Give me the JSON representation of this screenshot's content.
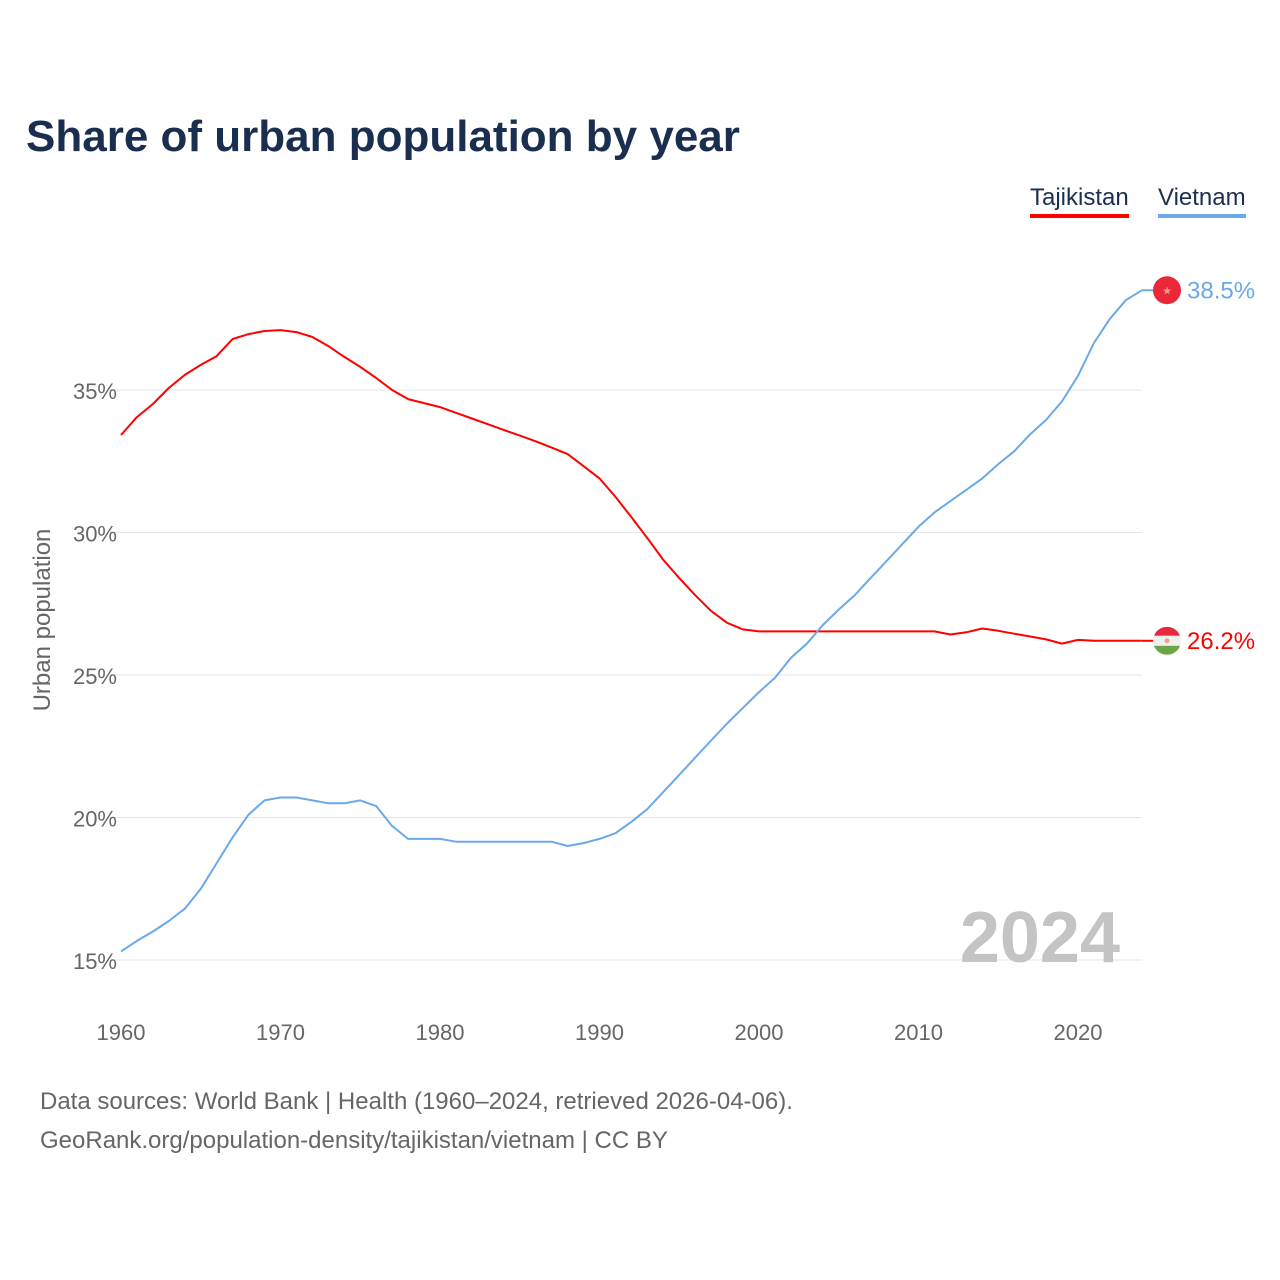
{
  "title": "Share of urban population by year",
  "chart_data": {
    "type": "line",
    "title": "Share of urban population by year",
    "xlabel": "",
    "ylabel": "Urban population",
    "xlim": [
      1960,
      2024
    ],
    "ylim": [
      15,
      38.5
    ],
    "x_ticks": [
      1960,
      1970,
      1980,
      1990,
      2000,
      2010,
      2020
    ],
    "x_tick_labels": [
      "1960",
      "1970",
      "1980",
      "1990",
      "2000",
      "2010",
      "2020"
    ],
    "y_ticks": [
      15,
      20,
      25,
      30,
      35
    ],
    "y_tick_labels": [
      "15%",
      "20%",
      "25%",
      "30%",
      "35%"
    ],
    "grid": true,
    "legend_position": "top-right",
    "annotation": "2024",
    "start_year": 1960,
    "series": [
      {
        "name": "Tajikistan",
        "color": "#ff0000",
        "end_label": "26.2%",
        "values": [
          33.42,
          34.05,
          34.51,
          35.07,
          35.53,
          35.88,
          36.19,
          36.79,
          36.96,
          37.07,
          37.1,
          37.03,
          36.86,
          36.54,
          36.16,
          35.81,
          35.42,
          35.0,
          34.68,
          34.54,
          34.4,
          34.2,
          34.0,
          33.8,
          33.6,
          33.4,
          33.2,
          32.98,
          32.75,
          32.33,
          31.9,
          31.25,
          30.54,
          29.8,
          29.04,
          28.4,
          27.8,
          27.25,
          26.83,
          26.6,
          26.53,
          26.53,
          26.53,
          26.53,
          26.53,
          26.53,
          26.53,
          26.53,
          26.53,
          26.53,
          26.53,
          26.53,
          26.42,
          26.5,
          26.63,
          26.55,
          26.45,
          26.35,
          26.25,
          26.1,
          26.23,
          26.2,
          26.2,
          26.2,
          26.2
        ]
      },
      {
        "name": "Vietnam",
        "color": "#6aa9e9",
        "end_label": "38.5%",
        "values": [
          15.3,
          15.67,
          16.0,
          16.37,
          16.8,
          17.5,
          18.4,
          19.3,
          20.1,
          20.6,
          20.7,
          20.7,
          20.6,
          20.5,
          20.5,
          20.6,
          20.4,
          19.7,
          19.25,
          19.25,
          19.25,
          19.15,
          19.15,
          19.15,
          19.15,
          19.15,
          19.15,
          19.15,
          19.0,
          19.1,
          19.25,
          19.45,
          19.85,
          20.3,
          20.9,
          21.5,
          22.1,
          22.7,
          23.3,
          23.85,
          24.4,
          24.9,
          25.6,
          26.1,
          26.75,
          27.3,
          27.8,
          28.4,
          29.0,
          29.6,
          30.2,
          30.7,
          31.1,
          31.5,
          31.9,
          32.4,
          32.85,
          33.45,
          33.95,
          34.6,
          35.5,
          36.65,
          37.5,
          38.15,
          38.5
        ]
      }
    ]
  },
  "sources": {
    "line1": "Data sources: World Bank | Health (1960–2024, retrieved 2026-04-06).",
    "line2": "GeoRank.org/population-density/tajikistan/vietnam | CC BY"
  }
}
